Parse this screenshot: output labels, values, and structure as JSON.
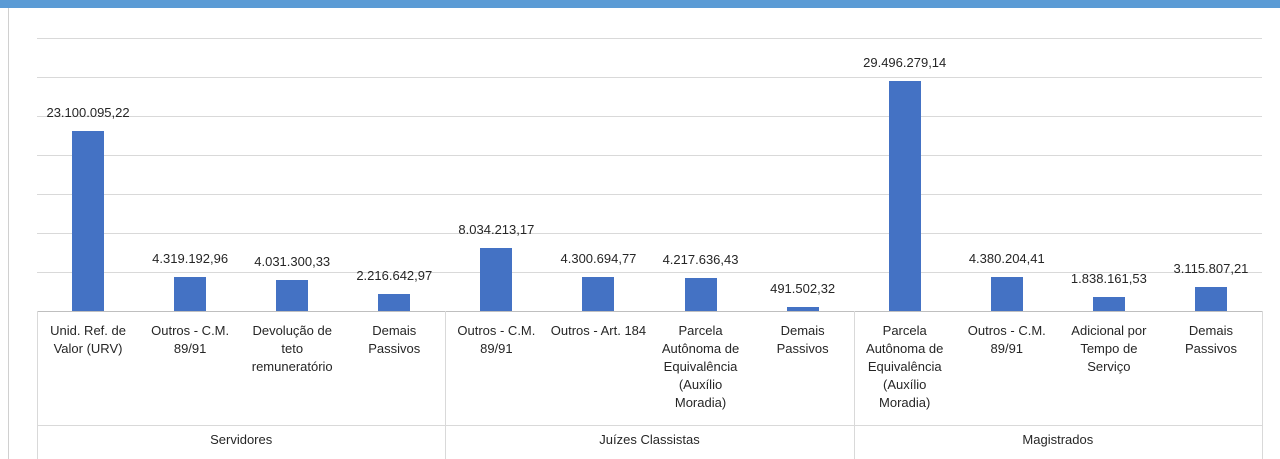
{
  "chart_data": {
    "type": "bar",
    "color": "#4472c4",
    "grid": true,
    "ylim": [
      0,
      35000000
    ],
    "yticks": [
      0,
      5000000,
      10000000,
      15000000,
      20000000,
      25000000,
      30000000,
      35000000
    ],
    "groups": [
      {
        "name": "Servidores",
        "categories": [
          "Unid. Ref. de Valor (URV)",
          "Outros - C.M. 89/91",
          "Devolução de teto remuneratório",
          "Demais Passivos"
        ],
        "values": [
          23100095.22,
          4319192.96,
          4031300.33,
          2216642.97
        ],
        "value_labels": [
          "23.100.095,22",
          "4.319.192,96",
          "4.031.300,33",
          "2.216.642,97"
        ]
      },
      {
        "name": "Juízes Classistas",
        "categories": [
          "Outros - C.M. 89/91",
          "Outros - Art. 184",
          "Parcela Autônoma de Equivalência (Auxílio Moradia)",
          "Demais Passivos"
        ],
        "values": [
          8034213.17,
          4300694.77,
          4217636.43,
          491502.32
        ],
        "value_labels": [
          "8.034.213,17",
          "4.300.694,77",
          "4.217.636,43",
          "491.502,32"
        ]
      },
      {
        "name": "Magistrados",
        "categories": [
          "Parcela Autônoma de Equivalência (Auxílio Moradia)",
          "Outros - C.M. 89/91",
          "Adicional por Tempo de Serviço",
          "Demais Passivos"
        ],
        "values": [
          29496279.14,
          4380204.41,
          1838161.53,
          3115807.21
        ],
        "value_labels": [
          "29.496.279,14",
          "4.380.204,41",
          "1.838.161,53",
          "3.115.807,21"
        ]
      }
    ]
  }
}
